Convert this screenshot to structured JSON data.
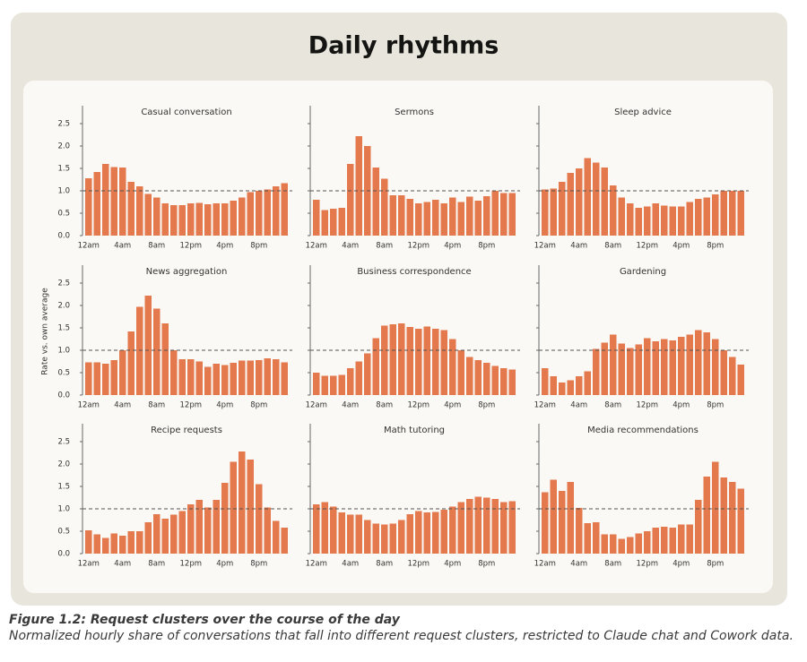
{
  "title": "Daily rhythms",
  "caption": {
    "title": "Figure 1.2: Request clusters over the course of the day",
    "text": "Normalized hourly share of conversations that fall into different request clusters, restricted to Claude chat and Cowork data."
  },
  "y_axis": {
    "label": "Rate vs. own average",
    "ylim": [
      0,
      2.9
    ],
    "yticks": [
      {
        "value": 0,
        "label": "0.0"
      },
      0.5,
      {
        "value": 1,
        "label": "1.0"
      },
      1.5,
      {
        "value": 2,
        "label": "2.0"
      },
      2.5
    ],
    "reference_line": 1
  },
  "chart_data": [
    {
      "type": "bar",
      "title": "Casual conversation",
      "color": "#e3794c",
      "categories": [
        "12am",
        null,
        null,
        null,
        "4am",
        null,
        null,
        null,
        "8am",
        null,
        null,
        null,
        "12pm",
        null,
        null,
        null,
        "4pm",
        null,
        null,
        null,
        "8pm",
        null,
        null,
        null
      ],
      "values": [
        1.28,
        1.42,
        1.6,
        1.53,
        1.52,
        1.2,
        1.1,
        0.93,
        0.85,
        0.72,
        0.68,
        0.68,
        0.72,
        0.73,
        0.7,
        0.72,
        0.72,
        0.78,
        0.85,
        0.97,
        1.0,
        1.03,
        1.1,
        1.17
      ]
    },
    {
      "type": "bar",
      "title": "Sermons",
      "color": "#e3794c",
      "categories": [
        "12am",
        null,
        null,
        null,
        "4am",
        null,
        null,
        null,
        "8am",
        null,
        null,
        null,
        "12pm",
        null,
        null,
        null,
        "4pm",
        null,
        null,
        null,
        "8pm",
        null,
        null,
        null
      ],
      "values": [
        0.8,
        0.57,
        0.6,
        0.62,
        1.6,
        2.22,
        2.0,
        1.52,
        1.27,
        0.9,
        0.9,
        0.82,
        0.72,
        0.75,
        0.8,
        0.72,
        0.85,
        0.75,
        0.87,
        0.78,
        0.88,
        1.0,
        0.95,
        0.95
      ]
    },
    {
      "type": "bar",
      "title": "Sleep advice",
      "color": "#e3794c",
      "categories": [
        "12am",
        null,
        null,
        null,
        "4am",
        null,
        null,
        null,
        "8am",
        null,
        null,
        null,
        "12pm",
        null,
        null,
        null,
        "4pm",
        null,
        null,
        null,
        "8pm",
        null,
        null,
        null
      ],
      "values": [
        1.03,
        1.05,
        1.2,
        1.4,
        1.5,
        1.73,
        1.63,
        1.52,
        1.12,
        0.85,
        0.72,
        0.62,
        0.65,
        0.72,
        0.67,
        0.65,
        0.65,
        0.75,
        0.82,
        0.85,
        0.92,
        1.0,
        1.0,
        1.0
      ]
    },
    {
      "type": "bar",
      "title": "News aggregation",
      "color": "#e3794c",
      "categories": [
        "12am",
        null,
        null,
        null,
        "4am",
        null,
        null,
        null,
        "8am",
        null,
        null,
        null,
        "12pm",
        null,
        null,
        null,
        "4pm",
        null,
        null,
        null,
        "8pm",
        null,
        null,
        null
      ],
      "values": [
        0.73,
        0.73,
        0.7,
        0.78,
        1.0,
        1.42,
        1.97,
        2.22,
        1.93,
        1.6,
        1.0,
        0.8,
        0.8,
        0.75,
        0.63,
        0.7,
        0.67,
        0.72,
        0.77,
        0.77,
        0.78,
        0.82,
        0.8,
        0.73
      ]
    },
    {
      "type": "bar",
      "title": "Business correspondence",
      "color": "#e3794c",
      "categories": [
        "12am",
        null,
        null,
        null,
        "4am",
        null,
        null,
        null,
        "8am",
        null,
        null,
        null,
        "12pm",
        null,
        null,
        null,
        "4pm",
        null,
        null,
        null,
        "8pm",
        null,
        null,
        null
      ],
      "values": [
        0.5,
        0.43,
        0.43,
        0.45,
        0.6,
        0.75,
        0.93,
        1.27,
        1.55,
        1.58,
        1.6,
        1.52,
        1.48,
        1.53,
        1.48,
        1.45,
        1.25,
        1.0,
        0.85,
        0.78,
        0.72,
        0.65,
        0.6,
        0.57
      ]
    },
    {
      "type": "bar",
      "title": "Gardening",
      "color": "#e3794c",
      "categories": [
        "12am",
        null,
        null,
        null,
        "4am",
        null,
        null,
        null,
        "8am",
        null,
        null,
        null,
        "12pm",
        null,
        null,
        null,
        "4pm",
        null,
        null,
        null,
        "8pm",
        null,
        null,
        null
      ],
      "values": [
        0.6,
        0.42,
        0.28,
        0.33,
        0.42,
        0.53,
        1.03,
        1.17,
        1.35,
        1.15,
        1.05,
        1.13,
        1.27,
        1.2,
        1.25,
        1.22,
        1.3,
        1.35,
        1.45,
        1.4,
        1.25,
        1.0,
        0.85,
        0.68
      ]
    },
    {
      "type": "bar",
      "title": "Recipe requests",
      "color": "#e3794c",
      "categories": [
        "12am",
        null,
        null,
        null,
        "4am",
        null,
        null,
        null,
        "8am",
        null,
        null,
        null,
        "12pm",
        null,
        null,
        null,
        "4pm",
        null,
        null,
        null,
        "8pm",
        null,
        null,
        null
      ],
      "values": [
        0.52,
        0.43,
        0.35,
        0.45,
        0.4,
        0.5,
        0.5,
        0.7,
        0.88,
        0.78,
        0.87,
        0.95,
        1.1,
        1.2,
        1.03,
        1.2,
        1.58,
        2.05,
        2.28,
        2.1,
        1.55,
        1.03,
        0.73,
        0.58
      ]
    },
    {
      "type": "bar",
      "title": "Math tutoring",
      "color": "#e3794c",
      "categories": [
        "12am",
        null,
        null,
        null,
        "4am",
        null,
        null,
        null,
        "8am",
        null,
        null,
        null,
        "12pm",
        null,
        null,
        null,
        "4pm",
        null,
        null,
        null,
        "8pm",
        null,
        null,
        null
      ],
      "values": [
        1.1,
        1.15,
        1.05,
        0.92,
        0.87,
        0.87,
        0.75,
        0.67,
        0.65,
        0.67,
        0.75,
        0.88,
        0.95,
        0.92,
        0.93,
        0.98,
        1.05,
        1.15,
        1.22,
        1.27,
        1.25,
        1.22,
        1.15,
        1.17
      ]
    },
    {
      "type": "bar",
      "title": "Media recommendations",
      "color": "#e3794c",
      "categories": [
        "12am",
        null,
        null,
        null,
        "4am",
        null,
        null,
        null,
        "8am",
        null,
        null,
        null,
        "12pm",
        null,
        null,
        null,
        "4pm",
        null,
        null,
        null,
        "8pm",
        null,
        null,
        null
      ],
      "values": [
        1.37,
        1.65,
        1.4,
        1.6,
        1.02,
        0.68,
        0.7,
        0.43,
        0.43,
        0.33,
        0.37,
        0.45,
        0.5,
        0.58,
        0.6,
        0.58,
        0.65,
        0.65,
        1.2,
        1.72,
        2.05,
        1.7,
        1.6,
        1.45
      ]
    }
  ]
}
